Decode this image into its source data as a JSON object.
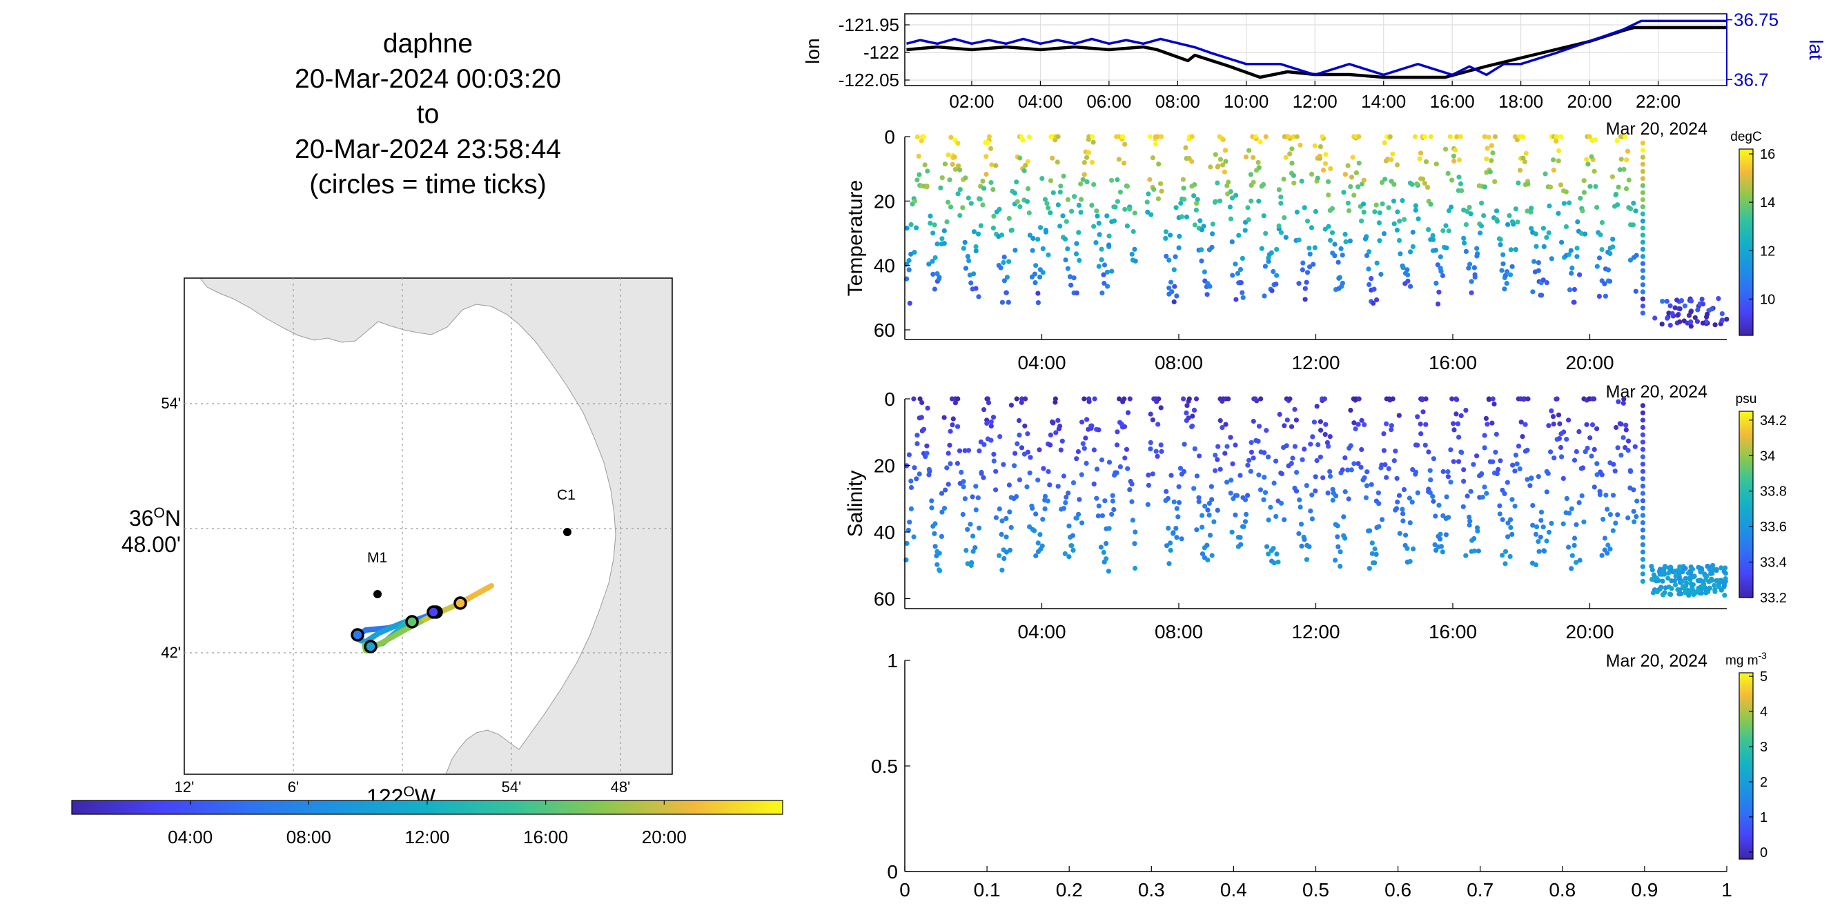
{
  "title": {
    "lines": [
      "daphne",
      "20-Mar-2024 00:03:20",
      "to",
      "20-Mar-2024 23:58:44",
      "(circles = time ticks)"
    ]
  },
  "map": {
    "lat_ticks": [
      {
        "value": 36.9,
        "label": "54'"
      },
      {
        "value": 36.8,
        "label": "36°N 48.00'"
      },
      {
        "value": 36.7,
        "label": "42'"
      }
    ],
    "lon_ticks": [
      {
        "value": -122.2,
        "label": "12'"
      },
      {
        "value": -122.1,
        "label": "6'"
      },
      {
        "value": -122.0,
        "label": "122°W"
      },
      {
        "value": -121.9,
        "label": "54'"
      },
      {
        "value": -121.8,
        "label": "48'"
      }
    ],
    "stations": [
      {
        "name": "M1",
        "lon": -122.023,
        "lat": 36.747
      },
      {
        "name": "C1",
        "lon": -121.843,
        "lat": 36.797
      }
    ],
    "land_color": "#e6e6e6",
    "time_colorbar": {
      "ticks": [
        "04:00",
        "08:00",
        "12:00",
        "16:00",
        "20:00"
      ]
    }
  },
  "chart_data": [
    {
      "type": "line",
      "name": "position",
      "x_ticks": [
        "02:00",
        "04:00",
        "06:00",
        "08:00",
        "10:00",
        "12:00",
        "14:00",
        "16:00",
        "18:00",
        "20:00",
        "22:00"
      ],
      "x_hours": [
        2,
        4,
        6,
        8,
        10,
        12,
        14,
        16,
        18,
        20,
        22
      ],
      "xlim": [
        0.05,
        24
      ],
      "left_axis": {
        "label": "lon",
        "ticks": [
          "-121.95",
          "-122",
          "-122.05"
        ],
        "tick_values": [
          -121.95,
          -122.0,
          -122.05
        ],
        "ylim": [
          -122.06,
          -121.93
        ],
        "color": "#000000"
      },
      "right_axis": {
        "label": "lat",
        "ticks": [
          "36.75",
          "36.7"
        ],
        "tick_values": [
          36.75,
          36.7
        ],
        "ylim": [
          36.695,
          36.755
        ],
        "color": "#0000cc"
      },
      "date_label": "Mar 20, 2024",
      "series": [
        {
          "axis": "lon",
          "hours": [
            0.1,
            1,
            2,
            3,
            4,
            5,
            6,
            7,
            7.4,
            8.3,
            8.5,
            9.5,
            10.4,
            11.2,
            12,
            13,
            14,
            15,
            15.8,
            17,
            18,
            19,
            20,
            21,
            21.3,
            22.5,
            24
          ],
          "values": [
            -121.995,
            -121.99,
            -121.995,
            -121.99,
            -121.995,
            -121.99,
            -121.995,
            -121.99,
            -121.995,
            -122.015,
            -122.005,
            -122.025,
            -122.045,
            -122.035,
            -122.04,
            -122.04,
            -122.045,
            -122.045,
            -122.045,
            -122.025,
            -122.01,
            -121.995,
            -121.98,
            -121.96,
            -121.955,
            -121.955,
            -121.955
          ]
        },
        {
          "axis": "lat",
          "hours": [
            0.1,
            0.5,
            1,
            1.5,
            2,
            2.5,
            3,
            3.5,
            4,
            4.5,
            5,
            5.5,
            6,
            6.5,
            7,
            7.5,
            8.5,
            9,
            10,
            11,
            12,
            13,
            14,
            15,
            16,
            16.5,
            17,
            17.5,
            18,
            19,
            20,
            21,
            21.5,
            24
          ],
          "values": [
            36.73,
            36.733,
            36.73,
            36.734,
            36.73,
            36.733,
            36.73,
            36.734,
            36.73,
            36.733,
            36.73,
            36.734,
            36.73,
            36.733,
            36.73,
            36.734,
            36.727,
            36.722,
            36.713,
            36.713,
            36.704,
            36.713,
            36.704,
            36.713,
            36.704,
            36.711,
            36.704,
            36.713,
            36.713,
            36.722,
            36.732,
            36.742,
            36.749,
            36.749
          ]
        }
      ]
    },
    {
      "type": "scatter",
      "name": "temperature",
      "ylabel": "Temperature",
      "x_ticks": [
        "04:00",
        "08:00",
        "12:00",
        "16:00",
        "20:00"
      ],
      "x_hours": [
        4,
        8,
        12,
        16,
        20
      ],
      "y_ticks": [
        0,
        20,
        40,
        60
      ],
      "ylim": [
        0,
        63
      ],
      "xlim": [
        0,
        24
      ],
      "date_label": "Mar 20, 2024",
      "colorbar": {
        "unit": "degC",
        "ticks": [
          10,
          12,
          14,
          16
        ],
        "range": [
          8.5,
          16.2
        ]
      },
      "profile_model": "value decreases with depth from ~15.7 at 0 m to ~9 at 60 m; dives to ~50 m, gaps near 07:00 and after 21:30, deep 50-60 m samples 21:50-24:00"
    },
    {
      "type": "scatter",
      "name": "salinity",
      "ylabel": "Salinity",
      "x_ticks": [
        "04:00",
        "08:00",
        "12:00",
        "16:00",
        "20:00"
      ],
      "x_hours": [
        4,
        8,
        12,
        16,
        20
      ],
      "y_ticks": [
        0,
        20,
        40,
        60
      ],
      "ylim": [
        0,
        63
      ],
      "xlim": [
        0,
        24
      ],
      "date_label": "Mar 20, 2024",
      "colorbar": {
        "unit": "psu",
        "ticks": [
          33.2,
          33.4,
          33.6,
          33.8,
          34,
          34.2
        ],
        "range": [
          33.2,
          34.25
        ]
      },
      "profile_model": "value increases with depth from ~33.25 at 0 m to ~33.65 at 60 m"
    },
    {
      "type": "scatter",
      "name": "chlorophyll",
      "x_ticks": [
        "0",
        "0.1",
        "0.2",
        "0.3",
        "0.4",
        "0.5",
        "0.6",
        "0.7",
        "0.8",
        "0.9",
        "1"
      ],
      "y_ticks": [
        "0",
        "0.5",
        "1"
      ],
      "xlim": [
        0,
        1
      ],
      "ylim": [
        0,
        1
      ],
      "points": [],
      "colorbar": {
        "unit": "mg m",
        "unit_sup": "-3",
        "ticks": [
          0,
          1,
          2,
          3,
          4,
          5
        ],
        "range": [
          -0.2,
          5.1
        ]
      }
    }
  ]
}
